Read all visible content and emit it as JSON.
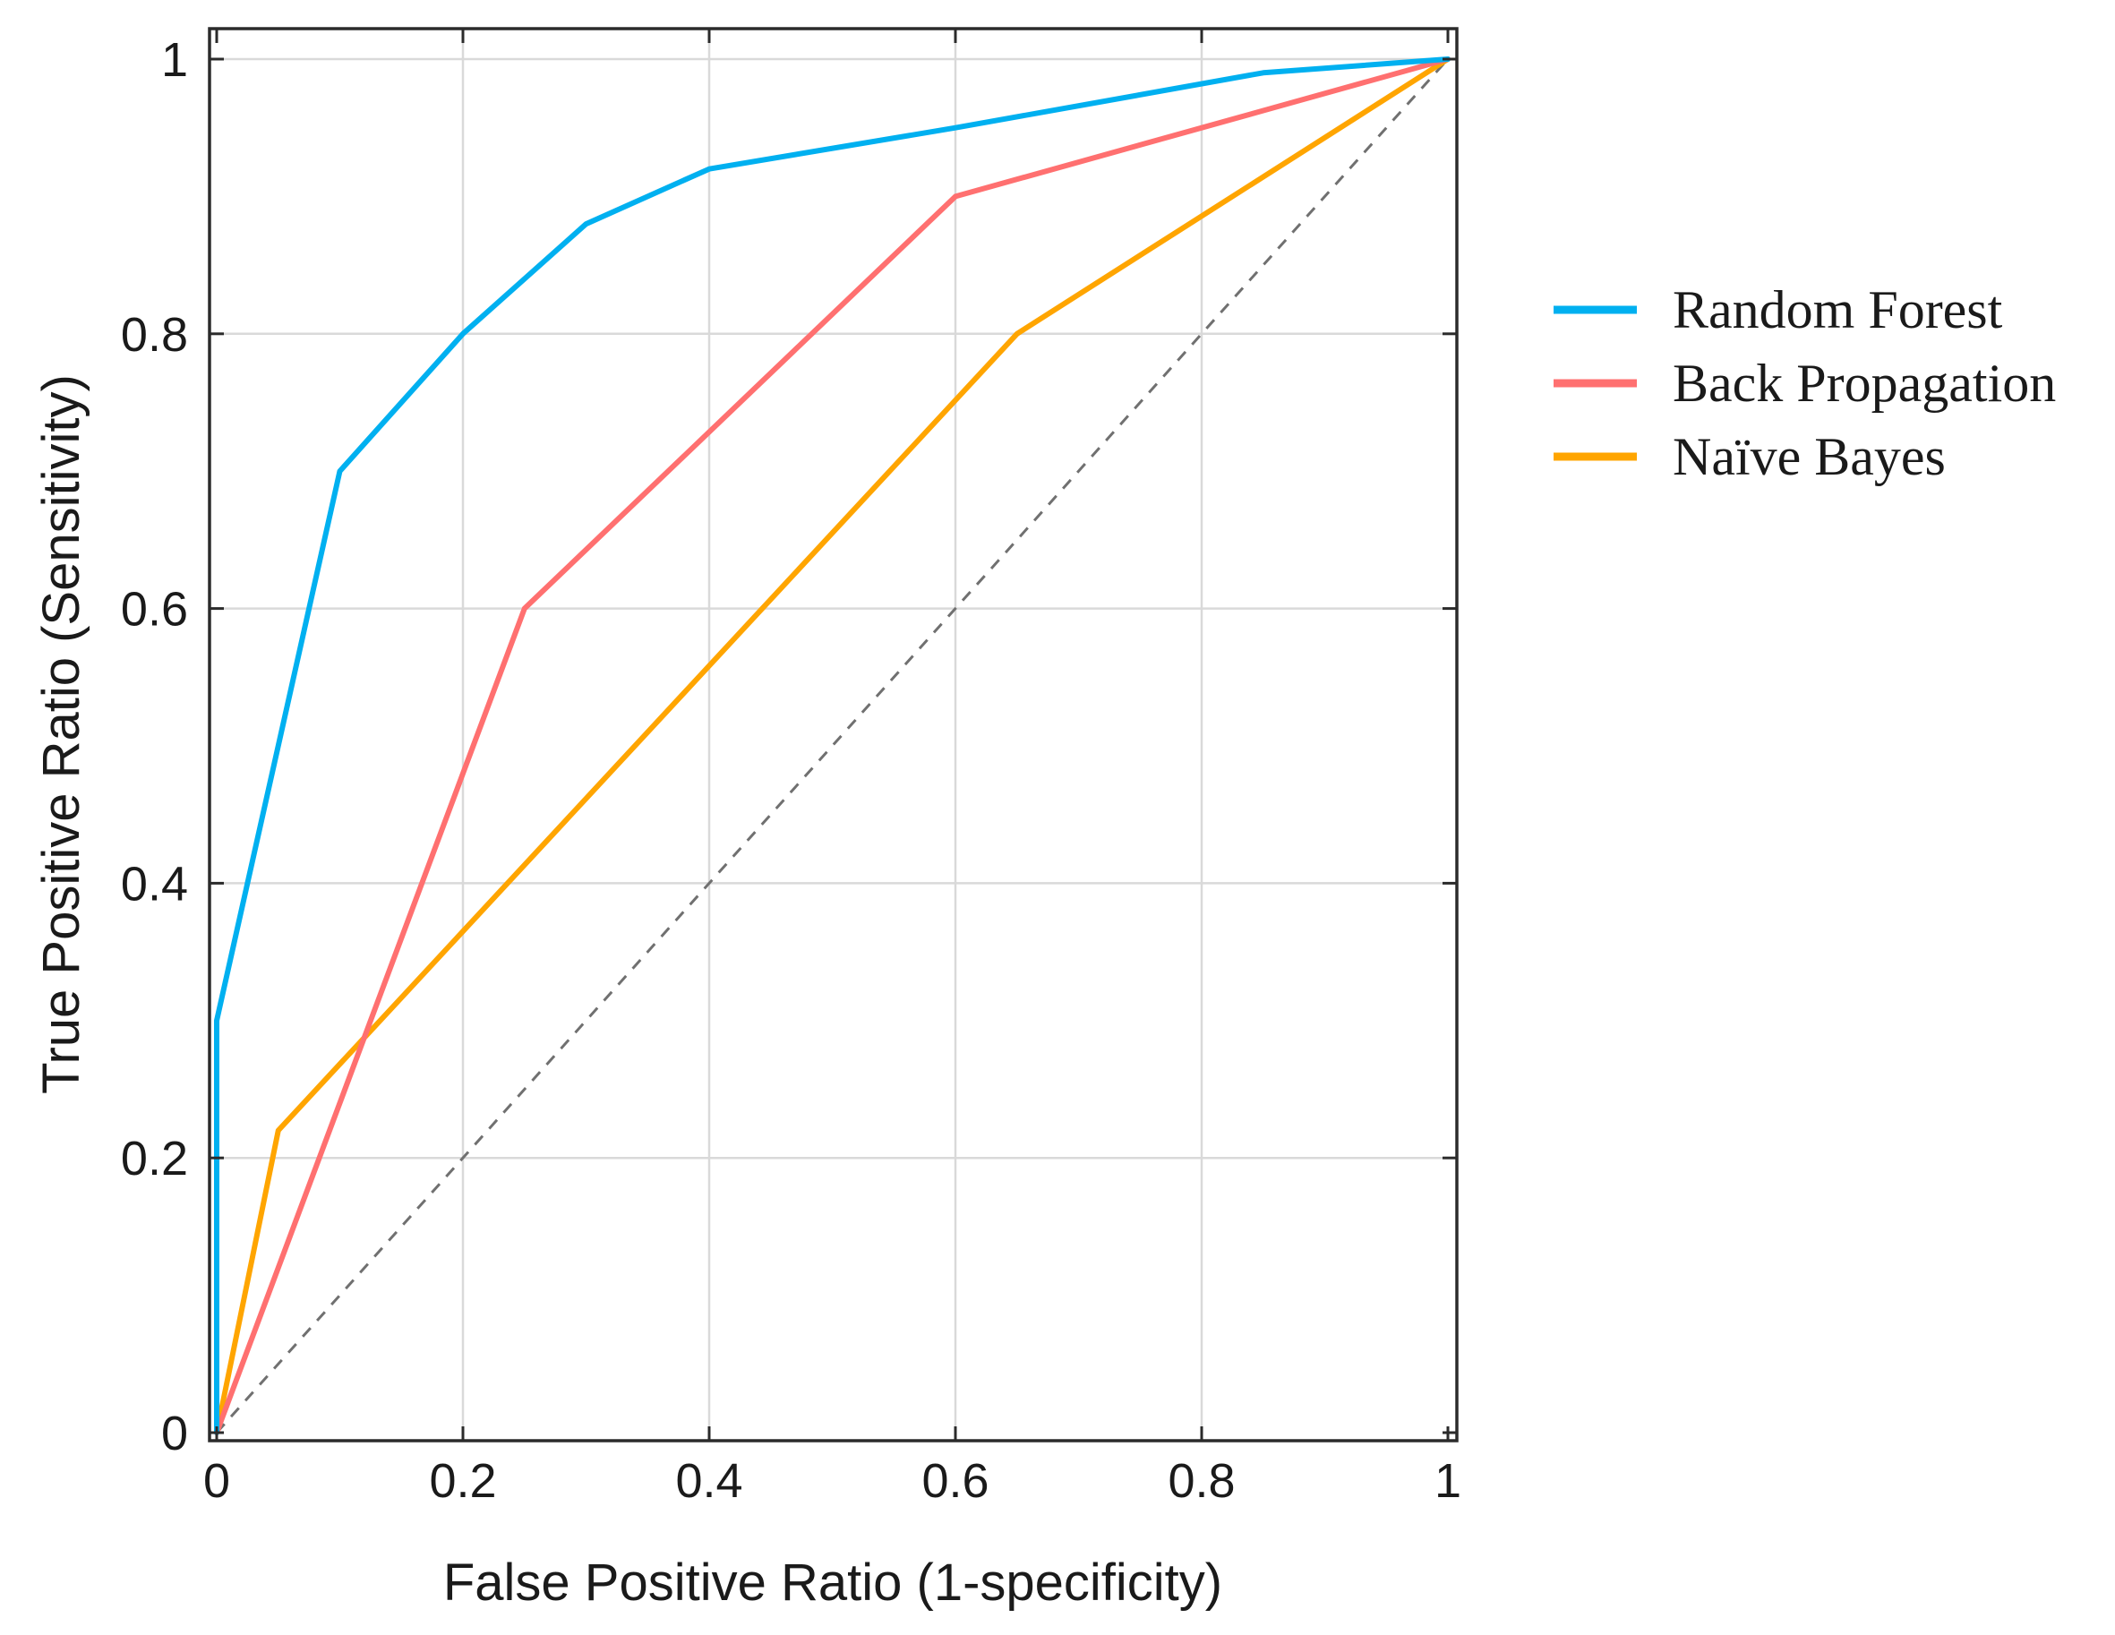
{
  "chart_data": {
    "type": "line",
    "title": "",
    "xlabel": "False Positive Ratio (1-specificity)",
    "ylabel": "True Positive Ratio (Sensitivity)",
    "xlim": [
      0,
      1
    ],
    "ylim": [
      0,
      1
    ],
    "grid": true,
    "legend_position": "right",
    "x_ticks": [
      "0",
      "0.2",
      "0.4",
      "0.6",
      "0.8",
      "1"
    ],
    "y_ticks": [
      "0",
      "0.2",
      "0.4",
      "0.6",
      "0.8",
      "1"
    ],
    "x_tick_values": [
      0,
      0.2,
      0.4,
      0.6,
      0.8,
      1
    ],
    "y_tick_values": [
      0,
      0.2,
      0.4,
      0.6,
      0.8,
      1
    ],
    "reference_line": {
      "name": "chance",
      "x": [
        0,
        1
      ],
      "y": [
        0,
        1
      ],
      "style": "dashed",
      "color": "#707070"
    },
    "series": [
      {
        "name": "Random Forest",
        "color": "#00B0F0",
        "x": [
          0,
          0,
          0.1,
          0.2,
          0.3,
          0.4,
          0.6,
          0.85,
          1
        ],
        "y": [
          0,
          0.3,
          0.7,
          0.8,
          0.88,
          0.92,
          0.95,
          0.99,
          1
        ]
      },
      {
        "name": "Back Propagation",
        "color": "#FF7070",
        "x": [
          0,
          0.25,
          0.6,
          1
        ],
        "y": [
          0,
          0.6,
          0.9,
          1
        ]
      },
      {
        "name": "Naïve Bayes",
        "color": "#FFA500",
        "x": [
          0,
          0.05,
          0.65,
          1
        ],
        "y": [
          0,
          0.22,
          0.8,
          1
        ]
      }
    ]
  }
}
